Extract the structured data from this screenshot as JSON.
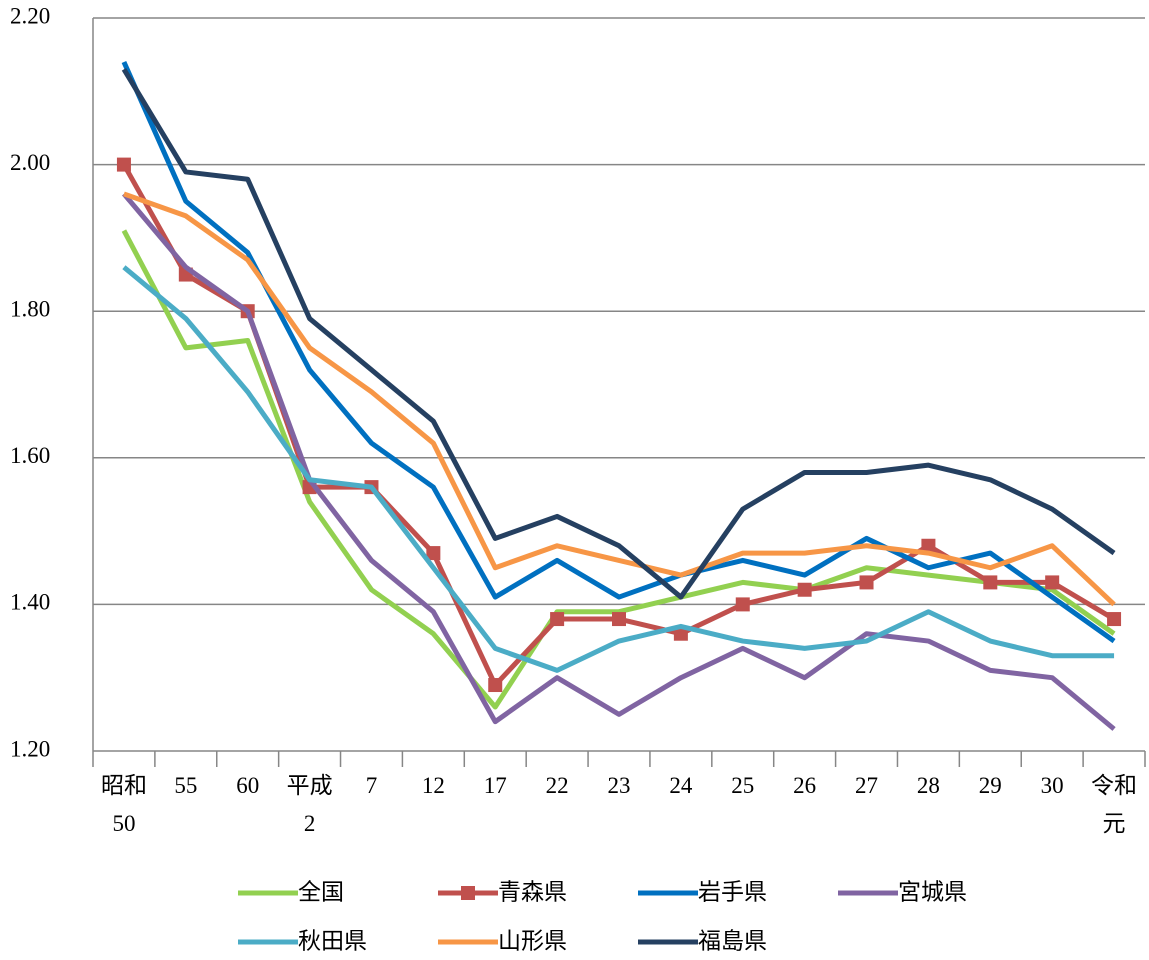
{
  "chart_data": {
    "type": "line",
    "categories": [
      "昭和\n50",
      "55",
      "60",
      "平成\n2",
      "7",
      "12",
      "17",
      "22",
      "23",
      "24",
      "25",
      "26",
      "27",
      "28",
      "29",
      "30",
      "令和\n元"
    ],
    "ylim": [
      1.2,
      2.2
    ],
    "yticks": [
      {
        "value": 1.2,
        "label": "1.20"
      },
      {
        "value": 1.4,
        "label": "1.40"
      },
      {
        "value": 1.6,
        "label": "1.60"
      },
      {
        "value": 1.8,
        "label": "1.80"
      },
      {
        "value": 2.0,
        "label": "2.00"
      },
      {
        "value": 2.2,
        "label": "2.20"
      }
    ],
    "grid": true,
    "legend": "bottom",
    "series": [
      {
        "name": "全国",
        "color": "#92d050",
        "values": [
          1.91,
          1.75,
          1.76,
          1.54,
          1.42,
          1.36,
          1.26,
          1.39,
          1.39,
          1.41,
          1.43,
          1.42,
          1.45,
          1.44,
          1.43,
          1.42,
          1.36
        ]
      },
      {
        "name": "青森県",
        "color": "#c0504d",
        "marker": "square",
        "values": [
          2.0,
          1.85,
          1.8,
          1.56,
          1.56,
          1.47,
          1.29,
          1.38,
          1.38,
          1.36,
          1.4,
          1.42,
          1.43,
          1.48,
          1.43,
          1.43,
          1.38
        ]
      },
      {
        "name": "岩手県",
        "color": "#0070c0",
        "values": [
          2.14,
          1.95,
          1.88,
          1.72,
          1.62,
          1.56,
          1.41,
          1.46,
          1.41,
          1.44,
          1.46,
          1.44,
          1.49,
          1.45,
          1.47,
          1.41,
          1.35
        ]
      },
      {
        "name": "宮城県",
        "color": "#8064a2",
        "values": [
          1.96,
          1.86,
          1.8,
          1.57,
          1.46,
          1.39,
          1.24,
          1.3,
          1.25,
          1.3,
          1.34,
          1.3,
          1.36,
          1.35,
          1.31,
          1.3,
          1.23
        ]
      },
      {
        "name": "秋田県",
        "color": "#4bacc6",
        "values": [
          1.86,
          1.79,
          1.69,
          1.57,
          1.56,
          1.45,
          1.34,
          1.31,
          1.35,
          1.37,
          1.35,
          1.34,
          1.35,
          1.39,
          1.35,
          1.33,
          1.33
        ]
      },
      {
        "name": "山形県",
        "color": "#f79646",
        "values": [
          1.96,
          1.93,
          1.87,
          1.75,
          1.69,
          1.62,
          1.45,
          1.48,
          1.46,
          1.44,
          1.47,
          1.47,
          1.48,
          1.47,
          1.45,
          1.48,
          1.4
        ]
      },
      {
        "name": "福島県",
        "color": "#254061",
        "values": [
          2.13,
          1.99,
          1.98,
          1.79,
          1.72,
          1.65,
          1.49,
          1.52,
          1.48,
          1.41,
          1.53,
          1.58,
          1.58,
          1.59,
          1.57,
          1.53,
          1.47
        ]
      }
    ]
  }
}
